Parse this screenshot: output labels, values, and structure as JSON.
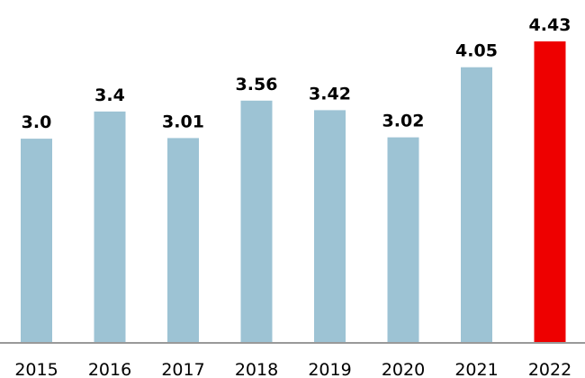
{
  "chart_data": {
    "type": "bar",
    "title": "",
    "xlabel": "",
    "ylabel": "",
    "categories": [
      "2015",
      "2016",
      "2017",
      "2018",
      "2019",
      "2020",
      "2021",
      "2022"
    ],
    "values": [
      3.0,
      3.4,
      3.01,
      3.56,
      3.42,
      3.02,
      4.05,
      4.43
    ],
    "value_labels": [
      "3.0",
      "3.4",
      "3.01",
      "3.56",
      "3.42",
      "3.02",
      "4.05",
      "4.43"
    ],
    "ylim": [
      0,
      4.43
    ],
    "grid": false,
    "legend": "none",
    "colors": {
      "default_bar": "#9dc3d4",
      "highlight_bar": "#ee0000",
      "axis": "#999999"
    },
    "highlight_category": "2022"
  }
}
